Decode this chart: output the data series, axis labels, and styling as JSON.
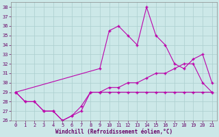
{
  "xlabel": "Windchill (Refroidissement éolien,°C)",
  "x": [
    0,
    1,
    2,
    3,
    4,
    5,
    6,
    7,
    8,
    9,
    10,
    11,
    12,
    13,
    14,
    15,
    16,
    17,
    18,
    19,
    20,
    21
  ],
  "line1": [
    29,
    28,
    28,
    27,
    27,
    26,
    26.5,
    27,
    29,
    29,
    29,
    29,
    29,
    29,
    29,
    29,
    29,
    29,
    29,
    29,
    29,
    29
  ],
  "line2": [
    29,
    28,
    28,
    27,
    27,
    26,
    26.5,
    27.5,
    29,
    29,
    29.5,
    29.5,
    30,
    30,
    30.5,
    31,
    31,
    31.5,
    32,
    32,
    30,
    29
  ],
  "line3_x": [
    0,
    9,
    10,
    11,
    12,
    13,
    14,
    15,
    16,
    17,
    18,
    19,
    20,
    21
  ],
  "line3_y": [
    29,
    31.5,
    35.5,
    36,
    35,
    34,
    38,
    35,
    34,
    32,
    31.5,
    32.5,
    33,
    30
  ],
  "bg_color": "#cce8e8",
  "grid_color": "#aacece",
  "line_color": "#bb00aa",
  "ylim": [
    26,
    38.5
  ],
  "xlim": [
    -0.5,
    21.5
  ],
  "yticks": [
    26,
    27,
    28,
    29,
    30,
    31,
    32,
    33,
    34,
    35,
    36,
    37,
    38
  ],
  "xticks": [
    0,
    1,
    2,
    3,
    4,
    5,
    6,
    7,
    8,
    9,
    10,
    11,
    12,
    13,
    14,
    15,
    16,
    17,
    18,
    19,
    20,
    21
  ],
  "tick_fontsize": 5,
  "xlabel_fontsize": 5.5,
  "marker": "+",
  "markersize": 3,
  "linewidth": 0.8
}
